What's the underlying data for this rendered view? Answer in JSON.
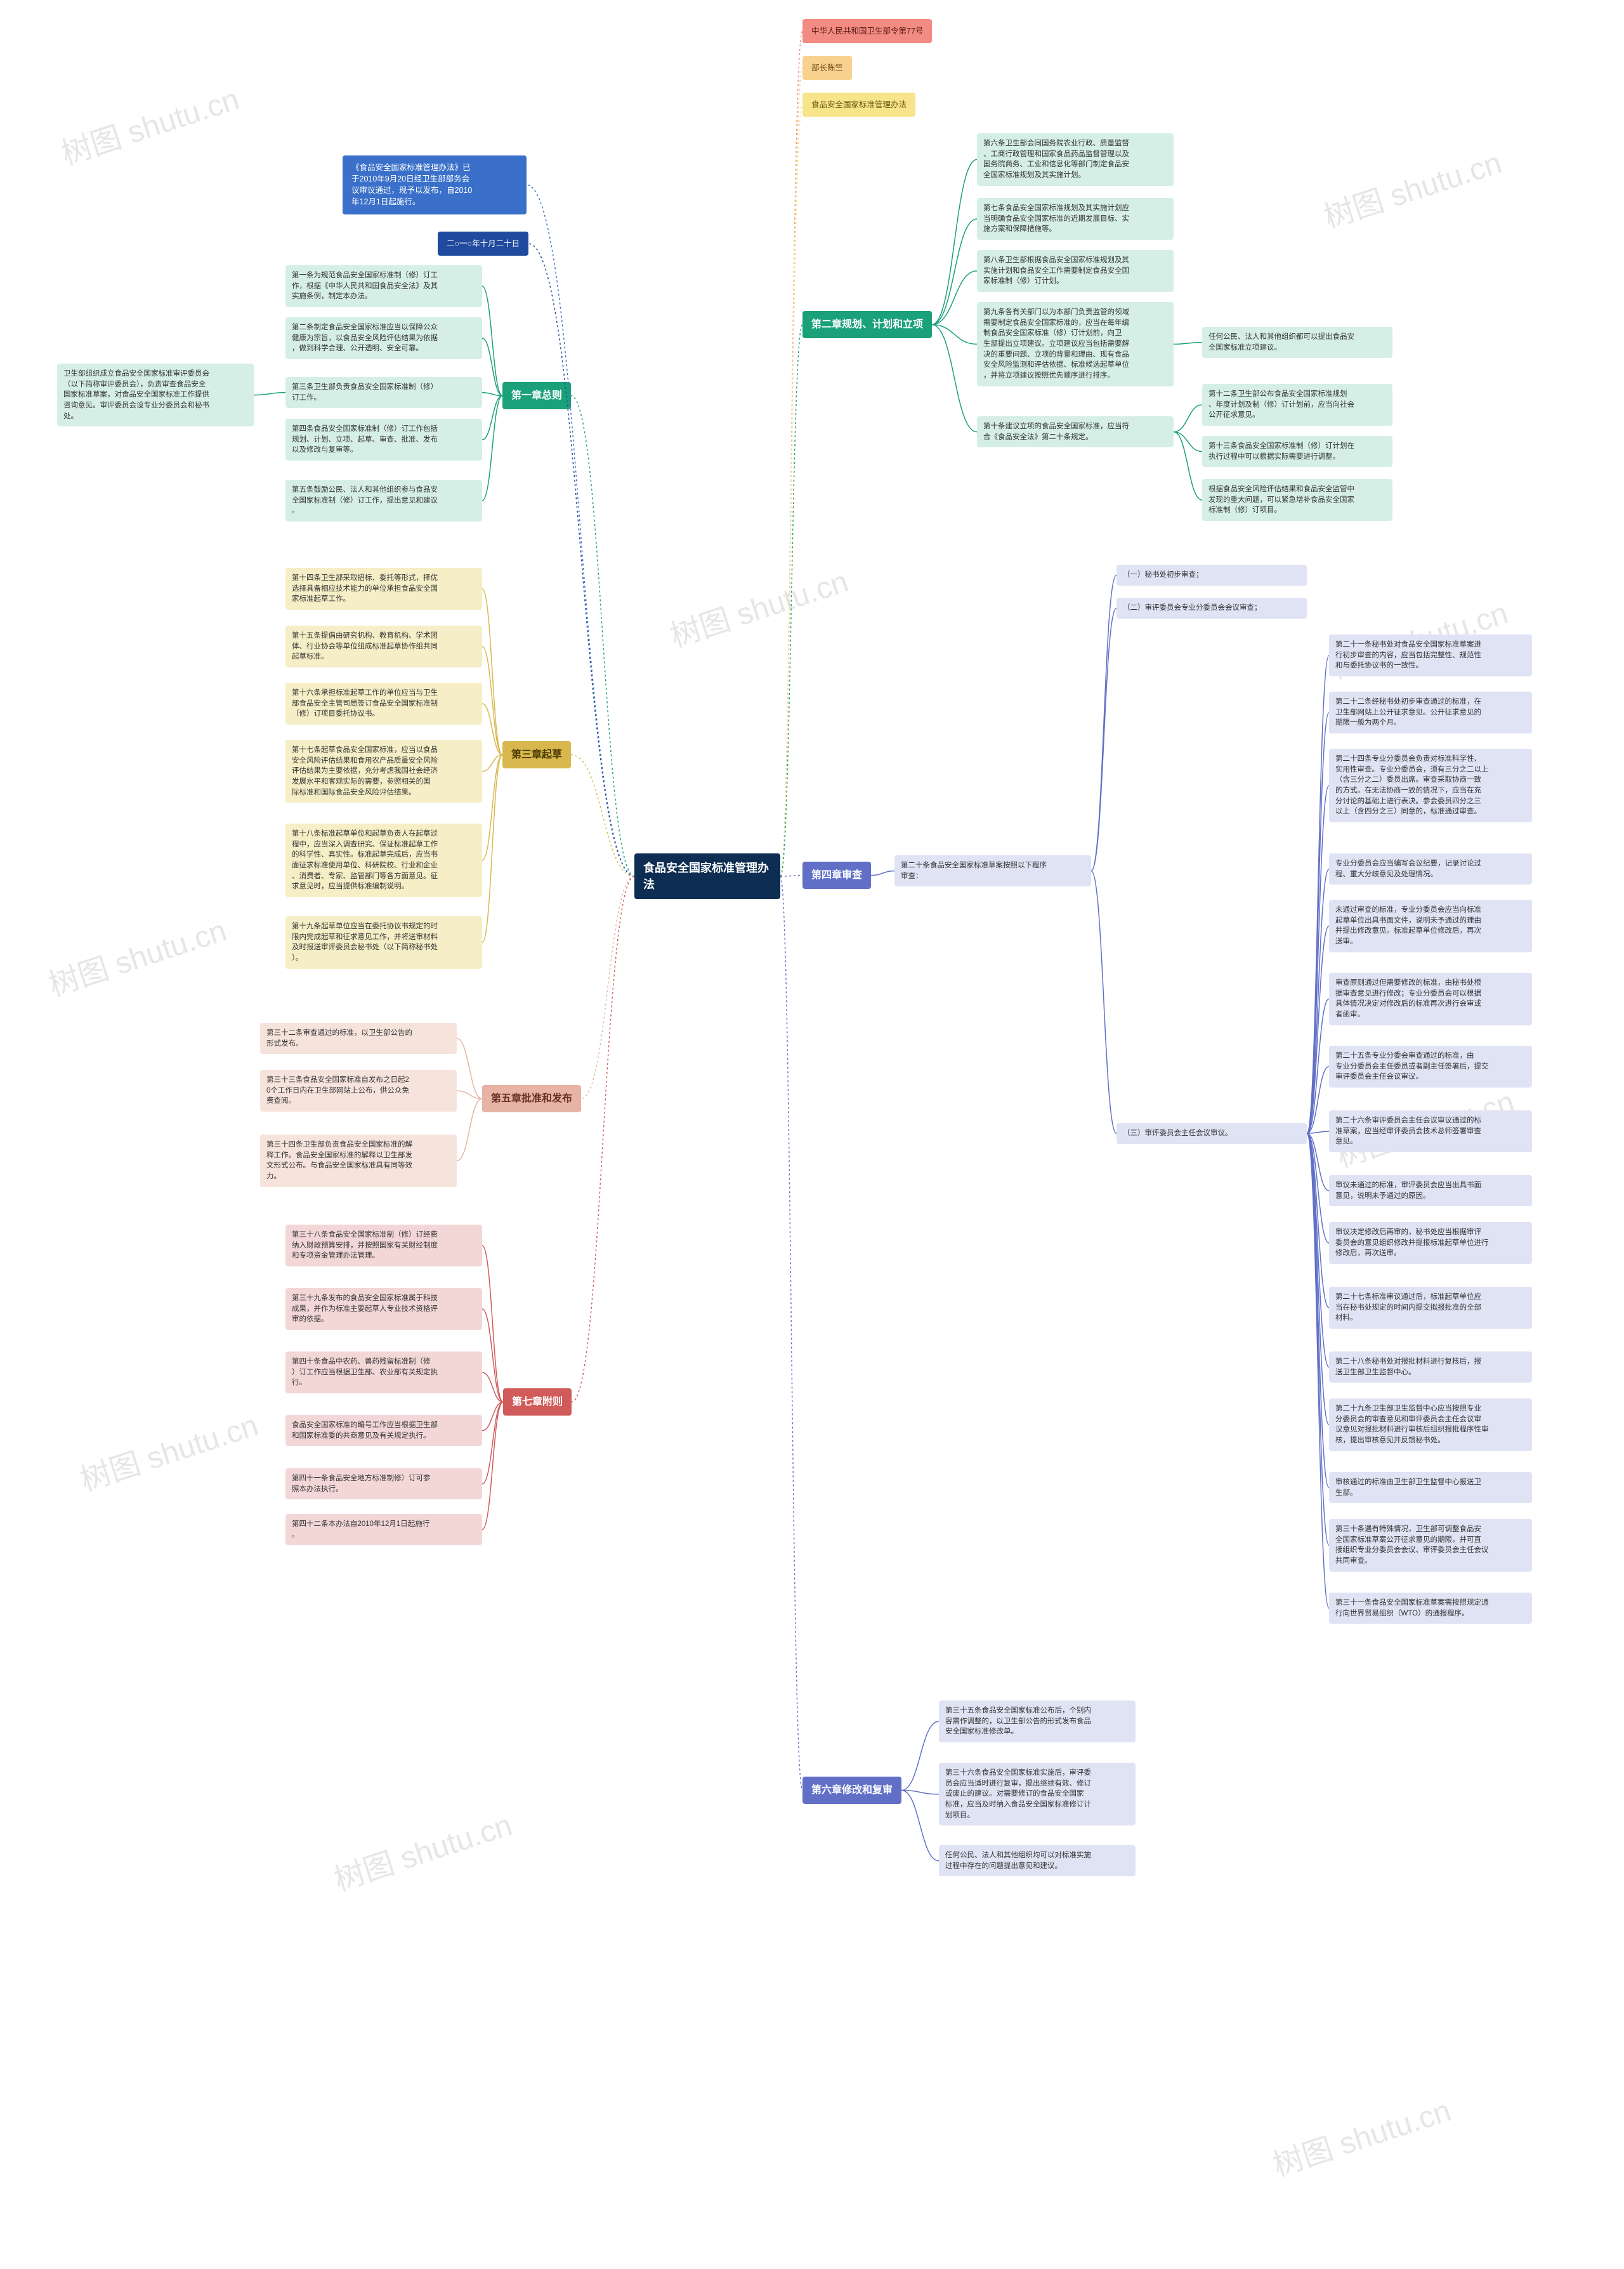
{
  "watermarks": [
    "树图 shutu.cn",
    "树图 shutu.cn",
    "树图 shutu.cn",
    "树图 shutu.cn",
    "树图 shutu.cn",
    "树图 shutu.cn",
    "树图 shutu.cn",
    "树图 shutu.cn",
    "树图 shutu.cn"
  ],
  "root": {
    "label": "食品安全国家标准管理办\n法",
    "bg": "#0d2e52",
    "fg": "#ffffff"
  },
  "top": {
    "decree": {
      "label": "中华人民共和国卫生部令第77号",
      "bg": "#f28b82",
      "fg": "#5a1a15"
    },
    "minister": {
      "label": "部长陈竺",
      "bg": "#f9d18f",
      "fg": "#6b4a14"
    },
    "title": {
      "label": "食品安全国家标准管理办法",
      "bg": "#f7e48b",
      "fg": "#6a5a10"
    }
  },
  "intro": {
    "pass": {
      "label": "《食品安全国家标准管理办法》已\n于2010年9月20日经卫生部部务会\n议审议通过，现予以发布，自2010\n年12月1日起施行。",
      "bg": "#3a70c9",
      "fg": "#ffffff"
    },
    "date": {
      "label": "二○一○年十月二十日",
      "bg": "#204a9e",
      "fg": "#ffffff"
    }
  },
  "ch1": {
    "title": "第一章总则",
    "bg": "#1aa179",
    "fg": "#ffffff",
    "box_bg": "#d6efe6",
    "a1": "第一条为规范食品安全国家标准制（修）订工\n作，根据《中华人民共和国食品安全法》及其\n实施条例，制定本办法。",
    "a2": "第二条制定食品安全国家标准应当以保障公众\n健康为宗旨，以食品安全风险评估结果为依据\n，做到科学合理、公开透明、安全可靠。",
    "a3": "第三条卫生部负责食品安全国家标准制（修）\n订工作。",
    "a3_note": "卫生部组织成立食品安全国家标准审评委员会\n（以下简称审评委员会），负责审查食品安全\n国家标准草案，对食品安全国家标准工作提供\n咨询意见。审评委员会设专业分委员会和秘书\n处。",
    "a4": "第四条食品安全国家标准制（修）订工作包括\n规划、计划、立项、起草、审查、批准、发布\n以及修改与复审等。",
    "a5": "第五条鼓励公民、法人和其他组织参与食品安\n全国家标准制（修）订工作，提出意见和建议\n。"
  },
  "ch2": {
    "title": "第二章规划、计划和立项",
    "bg": "#1aa179",
    "fg": "#ffffff",
    "box_bg": "#d6efe6",
    "a6": "第六条卫生部会同国务院农业行政、质量监督\n、工商行政管理和国家食品药品监督管理以及\n国务院商务、工业和信息化等部门制定食品安\n全国家标准规划及其实施计划。",
    "a7": "第七条食品安全国家标准规划及其实施计划应\n当明确食品安全国家标准的近期发展目标、实\n施方案和保障措施等。",
    "a8": "第八条卫生部根据食品安全国家标准规划及其\n实施计划和食品安全工作需要制定食品安全国\n家标准制（修）订计划。",
    "a9": "第九条各有关部门以为本部门负责监管的领域\n需要制定食品安全国家标准的，应当在每年编\n制食品安全国家标准（修）订计划前，向卫\n生部提出立项建议。立项建议应当包括需要解\n决的重要问题、立项的背景和理由、现有食品\n安全风险监测和评估依据、标准候选起草单位\n，并将立项建议按照优先顺序进行排序。",
    "a9_note": "任何公民、法人和其他组织都可以提出食品安\n全国家标准立项建议。",
    "a10": "第十条建议立项的食品安全国家标准，应当符\n合《食品安全法》第二十条规定。",
    "a10_notes": [
      "第十二条卫生部公布食品安全国家标准规划\n、年度计划及制（修）订计划前，应当向社会\n公开征求意见。",
      "第十三条食品安全国家标准制（修）订计划在\n执行过程中可以根据实际需要进行调整。",
      "根据食品安全风险评估结果和食品安全监管中\n发现的重大问题，可以紧急增补食品安全国家\n标准制（修）订项目。"
    ]
  },
  "ch3": {
    "title": "第三章起草",
    "bg": "#d8b84e",
    "fg": "#4a3a00",
    "box_bg": "#f5eec6",
    "a14": "第十四条卫生部采取招标、委托等形式，择优\n选择具备相应技术能力的单位承担食品安全国\n家标准起草工作。",
    "a15": "第十五条提倡由研究机构、教育机构、学术团\n体、行业协会等单位组成标准起草协作组共同\n起草标准。",
    "a16": "第十六条承担标准起草工作的单位应当与卫生\n部食品安全主管司局签订食品安全国家标准制\n（修）订项目委托协议书。",
    "a17": "第十七条起草食品安全国家标准，应当以食品\n安全风险评估结果和食用农产品质量安全风险\n评估结果为主要依据，充分考虑我国社会经济\n发展水平和客观实际的需要，参照相关的国\n际标准和国际食品安全风险评估结果。",
    "a18": "第十八条标准起草单位和起草负责人在起草过\n程中，应当深入调查研究、保证标准起草工作\n的科学性、真实性。标准起草完成后，应当书\n面征求标准使用单位、科研院校、行业和企业\n、消费者、专家、监管部门等各方面意见。征\n求意见时，应当提供标准编制说明。",
    "a19": "第十九条起草单位应当在委托协议书规定的时\n限内完成起草和征求意见工作，并将送审材料\n及时报送审评委员会秘书处（以下简称秘书处\n）。"
  },
  "ch4": {
    "title": "第四章审查",
    "bg": "#6170c6",
    "fg": "#ffffff",
    "box_bg": "#dfe3f4",
    "a20": "第二十条食品安全国家标准草案按照以下程序\n审查：",
    "step1": "（一）秘书处初步审查；",
    "step2": "（二）审评委员会专业分委员会会议审查；",
    "step3": {
      "label": "（三）审评委员会主任会议审议。",
      "items": [
        "第二十一条秘书处对食品安全国家标准草案进\n行初步审查的内容，应当包括完整性、规范性\n和与委托协议书的一致性。",
        "第二十二条经秘书处初步审查通过的标准，在\n卫生部网站上公开征求意见。公开征求意见的\n期限一般为两个月。",
        "第二十四条专业分委员会负责对标准科学性、\n实用性审查。专业分委员会，须有三分之二以上\n（含三分之二）委员出席。审查采取协商一致\n的方式。在无法协商一致的情况下，应当在充\n分讨论的基础上进行表决。参会委员四分之三\n以上（含四分之三）同意的，标准通过审查。",
        "专业分委员会应当编写会议纪要，记录讨论过\n程、重大分歧意见及处理情况。",
        "未通过审查的标准，专业分委员会应当向标准\n起草单位出具书面文件，说明未予通过的理由\n并提出修改意见。标准起草单位修改后，再次\n送审。",
        "审查原则通过但需要修改的标准，由秘书处根\n据审查意见进行修改；专业分委员会可以根据\n具体情况决定对修改后的标准再次进行会审或\n者函审。",
        "第二十五条专业分委会审查通过的标准，由\n专业分委员会主任委员或者副主任签署后，提交\n审评委员会主任会议审议。",
        "第二十六条审评委员会主任会议审议通过的标\n准草案，应当经审评委员会技术总师签署审查\n意见。",
        "审议未通过的标准，审评委员会应当出具书面\n意见，说明未予通过的原因。",
        "审议决定修改后再审的，秘书处应当根据审评\n委员会的意见组织修改并提报标准起草单位进行\n修改后，再次送审。",
        "第二十七条标准审议通过后，标准起草单位应\n当在秘书处规定的时间内提交拟报批准的全部\n材料。",
        "第二十八条秘书处对报批材料进行复核后，报\n送卫生部卫生监督中心。",
        "第二十九条卫生部卫生监督中心应当按照专业\n分委员会的审查意见和审评委员会主任会议审\n议意见对报批材料进行审核后组织报批程序性审\n核，提出审核意见并反馈秘书处。",
        "审核通过的标准由卫生部卫生监督中心报送卫\n生部。",
        "第三十条遇有特殊情况，卫生部可调整食品安\n全国家标准草案公开征求意见的期限，并可直\n接组织专业分委员会会议、审评委员会主任会议\n共同审查。",
        "第三十一条食品安全国家标准草案需按照规定通\n行向世界贸易组织（WTO）的通报程序。"
      ]
    }
  },
  "ch5": {
    "title": "第五章批准和发布",
    "bg": "#e6b3a4",
    "fg": "#6a3222",
    "box_bg": "#f6e3dc",
    "a32": "第三十二条审查通过的标准，以卫生部公告的\n形式发布。",
    "a33": "第三十三条食品安全国家标准自发布之日起2\n0个工作日内在卫生部网站上公布，供公众免\n费查阅。",
    "a34": "第三十四条卫生部负责食品安全国家标准的解\n释工作。食品安全国家标准的解释以卫生部发\n文形式公布。与食品安全国家标准具有同等效\n力。"
  },
  "ch6": {
    "title": "第六章修改和复审",
    "bg": "#6170c6",
    "fg": "#ffffff",
    "box_bg": "#dfe3f4",
    "a35": "第三十五条食品安全国家标准公布后，个别内\n容需作调整的，以卫生部公告的形式发布食品\n安全国家标准修改单。",
    "a36": "第三十六条食品安全国家标准实施后，审评委\n员会应当适时进行复审，提出继续有效、修订\n或废止的建议。对需要修订的食品安全国家\n标准，应当及时纳入食品安全国家标准修订计\n划项目。",
    "a36_note": "任何公民、法人和其他组织均可以对标准实施\n过程中存在的问题提出意见和建议。"
  },
  "ch7": {
    "title": "第七章附则",
    "bg": "#d15a5a",
    "fg": "#ffffff",
    "box_bg": "#f3d7d7",
    "a38": "第三十八条食品安全国家标准制（修）订经费\n纳入财政预算安排，并按照国家有关财经制度\n和专项资金管理办法管理。",
    "a39": "第三十九条发布的食品安全国家标准属于科技\n成果，并作为标准主要起草人专业技术资格评\n审的依据。",
    "a40": "第四十条食品中农药、兽药残留标准制（修\n）订工作应当根据卫生部、农业部有关规定执\n行。",
    "a40b": "食品安全国家标准的编号工作应当根据卫生部\n和国家标准委的共商意见及有关规定执行。",
    "a41": "第四十一条食品安全地方标准制修）订可参\n照本办法执行。",
    "a42": "第四十二条本办法自2010年12月1日起施行\n。"
  },
  "colors": {
    "dash_top": "#f28b82",
    "dash_green": "#1aa179",
    "dash_yellow": "#d8b84e",
    "dash_purple": "#6170c6",
    "dash_pink": "#e6b3a4",
    "dash_red": "#d15a5a"
  }
}
